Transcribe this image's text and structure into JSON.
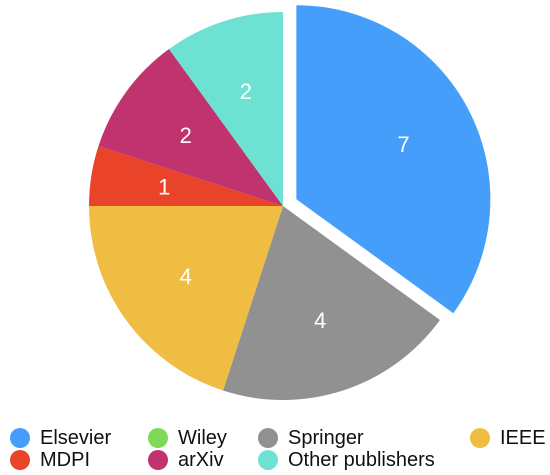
{
  "chart_data": {
    "type": "pie",
    "title": "",
    "slices": [
      {
        "label": "Elsevier",
        "value": 7,
        "color": "#459efa",
        "exploded": true
      },
      {
        "label": "Springer",
        "value": 4,
        "color": "#919191"
      },
      {
        "label": "IEEE",
        "value": 4,
        "color": "#f0bd43"
      },
      {
        "label": "MDPI",
        "value": 1,
        "color": "#e9432a"
      },
      {
        "label": "arXiv",
        "value": 2,
        "color": "#c0336f"
      },
      {
        "label": "Other publishers",
        "value": 2,
        "color": "#6de2d3"
      }
    ],
    "legend": {
      "placement": "bottom",
      "entries": [
        {
          "label": "Elsevier",
          "color": "#459efa"
        },
        {
          "label": "Wiley",
          "color": "#7ed957"
        },
        {
          "label": "Springer",
          "color": "#919191"
        },
        {
          "label": "IEEE",
          "color": "#f0bd43"
        },
        {
          "label": "MDPI",
          "color": "#e9432a"
        },
        {
          "label": "arXiv",
          "color": "#c0336f"
        },
        {
          "label": "Other publishers",
          "color": "#6de2d3"
        }
      ]
    }
  }
}
